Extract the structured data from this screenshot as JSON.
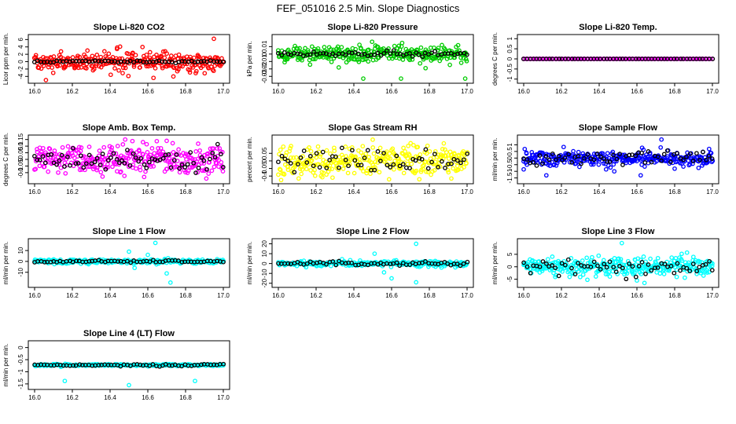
{
  "title": "FEF_051016  2.5 Min. Slope Diagnostics",
  "chart_data": [
    {
      "type": "scatter",
      "title": "Slope Li-820 CO2",
      "ylabel": "Licor ppm per min.",
      "xlim": [
        16.0,
        17.0
      ],
      "ylim": [
        -5,
        6.5
      ],
      "xticks": [
        "16.0",
        "16.2",
        "16.4",
        "16.6",
        "16.8",
        "17.0"
      ],
      "yticks": [
        -4,
        -2,
        0,
        2,
        4,
        6
      ],
      "series": [
        {
          "color": "#ff0000",
          "spread": 1.3,
          "n": 300,
          "outliers": [
            [
              16.06,
              -5.0
            ],
            [
              16.28,
              3.0
            ],
            [
              16.52,
              2.4
            ],
            [
              16.63,
              -4.4
            ],
            [
              16.95,
              6.2
            ]
          ]
        },
        {
          "color": "#000000",
          "spread": 0.12,
          "n": 60,
          "outliers": []
        }
      ]
    },
    {
      "type": "scatter",
      "title": "Slope Li-820 Pressure",
      "ylabel": "kPa per min.",
      "xlim": [
        16.0,
        17.0
      ],
      "ylim": [
        -0.035,
        0.022
      ],
      "xticks": [
        "16.0",
        "16.2",
        "16.4",
        "16.6",
        "16.8",
        "17.0"
      ],
      "yticks": [
        -0.03,
        -0.02,
        -0.01,
        0.0,
        0.01
      ],
      "series": [
        {
          "color": "#00cc00",
          "spread": 0.006,
          "n": 300,
          "outliers": [
            [
              16.32,
              -0.018
            ],
            [
              16.45,
              -0.033
            ],
            [
              16.65,
              -0.033
            ],
            [
              16.78,
              -0.019
            ],
            [
              16.99,
              -0.033
            ]
          ]
        },
        {
          "color": "#000000",
          "spread": 0.0015,
          "n": 60,
          "outliers": []
        }
      ]
    },
    {
      "type": "scatter",
      "title": "Slope Li-820 Temp.",
      "ylabel": "degrees C per min.",
      "xlim": [
        16.0,
        17.0
      ],
      "ylim": [
        -1.05,
        1.05
      ],
      "xticks": [
        "16.0",
        "16.2",
        "16.4",
        "16.6",
        "16.8",
        "17.0"
      ],
      "yticks": [
        -1.0,
        -0.5,
        0.0,
        0.5,
        1.0
      ],
      "series": [
        {
          "color": "#ff00ff",
          "spread": 0.0,
          "n": 120,
          "outliers": []
        },
        {
          "color": "#000000",
          "spread": 0.0,
          "n": 60,
          "outliers": []
        }
      ]
    },
    {
      "type": "scatter",
      "title": "Slope Amb. Box Temp.",
      "ylabel": "degrees C per min.",
      "xlim": [
        16.0,
        17.0
      ],
      "ylim": [
        -0.16,
        0.16
      ],
      "xticks": [
        "16.0",
        "16.2",
        "16.4",
        "16.6",
        "16.8",
        "17.0"
      ],
      "yticks": [
        -0.1,
        -0.05,
        0.0,
        0.05,
        0.1,
        0.15
      ],
      "series": [
        {
          "color": "#ff00ff",
          "spread": 0.055,
          "n": 320,
          "outliers": [
            [
              16.36,
              -0.13
            ],
            [
              16.48,
              0.15
            ],
            [
              16.7,
              0.14
            ]
          ]
        },
        {
          "color": "#000000",
          "spread": 0.04,
          "n": 70,
          "outliers": []
        }
      ]
    },
    {
      "type": "scatter",
      "title": "Slope Gas Stream RH",
      "ylabel": "percent per min.",
      "xlim": [
        16.0,
        17.0
      ],
      "ylim": [
        -0.13,
        0.15
      ],
      "xticks": [
        "16.0",
        "16.2",
        "16.4",
        "16.6",
        "16.8",
        "17.0"
      ],
      "yticks": [
        -0.1,
        -0.05,
        0.0,
        0.05
      ],
      "series": [
        {
          "color": "#ffff00",
          "spread": 0.05,
          "n": 320,
          "outliers": [
            [
              16.5,
              0.14
            ]
          ]
        },
        {
          "color": "#000000",
          "spread": 0.045,
          "n": 60,
          "outliers": []
        }
      ]
    },
    {
      "type": "scatter",
      "title": "Slope Sample Flow",
      "ylabel": "ml/min per min.",
      "xlim": [
        16.0,
        17.0
      ],
      "ylim": [
        -1.7,
        1.5
      ],
      "xticks": [
        "16.0",
        "16.2",
        "16.4",
        "16.6",
        "16.8",
        "17.0"
      ],
      "yticks": [
        -1.5,
        -1.0,
        -0.5,
        0.0,
        0.5,
        1.0
      ],
      "series": [
        {
          "color": "#0000ff",
          "spread": 0.3,
          "n": 320,
          "outliers": [
            [
              16.0,
              -0.85
            ],
            [
              16.12,
              -1.3
            ],
            [
              16.48,
              -1.0
            ],
            [
              16.62,
              -1.3
            ],
            [
              16.73,
              1.4
            ],
            [
              16.8,
              -0.8
            ]
          ]
        },
        {
          "color": "#000000",
          "spread": 0.3,
          "n": 60,
          "outliers": []
        }
      ]
    },
    {
      "type": "scatter",
      "title": "Slope Line 1 Flow",
      "ylabel": "ml/min per min.",
      "xlim": [
        16.0,
        17.0
      ],
      "ylim": [
        -21,
        18
      ],
      "xticks": [
        "16.0",
        "16.2",
        "16.4",
        "16.6",
        "16.8",
        "17.0"
      ],
      "yticks": [
        -10,
        0,
        10
      ],
      "series": [
        {
          "color": "#00ffff",
          "spread": 1.0,
          "n": 260,
          "outliers": [
            [
              16.5,
              9.0
            ],
            [
              16.53,
              -6.0
            ],
            [
              16.6,
              6.0
            ],
            [
              16.64,
              17.0
            ],
            [
              16.7,
              -11.0
            ],
            [
              16.72,
              -19.5
            ]
          ]
        },
        {
          "color": "#000000",
          "spread": 0.5,
          "n": 60,
          "outliers": []
        }
      ]
    },
    {
      "type": "scatter",
      "title": "Slope Line 2 Flow",
      "ylabel": "ml/min per min.",
      "xlim": [
        16.0,
        17.0
      ],
      "ylim": [
        -21,
        22
      ],
      "xticks": [
        "16.0",
        "16.2",
        "16.4",
        "16.6",
        "16.8",
        "17.0"
      ],
      "yticks": [
        -20,
        -10,
        0,
        10,
        20
      ],
      "series": [
        {
          "color": "#00ffff",
          "spread": 1.5,
          "n": 260,
          "outliers": [
            [
              16.51,
              10.0
            ],
            [
              16.56,
              -9.0
            ],
            [
              16.6,
              -15.0
            ],
            [
              16.73,
              20.0
            ],
            [
              16.73,
              -19.0
            ]
          ]
        },
        {
          "color": "#000000",
          "spread": 1.2,
          "n": 60,
          "outliers": []
        }
      ]
    },
    {
      "type": "scatter",
      "title": "Slope Line 3 Flow",
      "ylabel": "ml/min per min.",
      "xlim": [
        16.0,
        17.0
      ],
      "ylim": [
        -7,
        10
      ],
      "xticks": [
        "16.0",
        "16.2",
        "16.4",
        "16.6",
        "16.8",
        "17.0"
      ],
      "yticks": [
        -5,
        0,
        5
      ],
      "series": [
        {
          "color": "#00ffff",
          "spread": 1.8,
          "n": 320,
          "outliers": [
            [
              16.52,
              9.5
            ],
            [
              16.6,
              -5.5
            ],
            [
              16.64,
              -6.5
            ]
          ]
        },
        {
          "color": "#000000",
          "spread": 1.6,
          "n": 60,
          "outliers": []
        }
      ]
    },
    {
      "type": "scatter",
      "title": "Slope Line 4 (LT) Flow",
      "ylabel": "ml/min per min.",
      "xlim": [
        16.0,
        17.0
      ],
      "ylim": [
        -1.6,
        0.15
      ],
      "xticks": [
        "16.0",
        "16.2",
        "16.4",
        "16.6",
        "16.8",
        "17.0"
      ],
      "yticks": [
        -1.5,
        -1.0,
        -0.5,
        0.0
      ],
      "series": [
        {
          "color": "#00ffff",
          "spread": 0.02,
          "n": 260,
          "outliers": [
            [
              16.16,
              -1.38
            ],
            [
              16.5,
              -1.55
            ],
            [
              16.85,
              -1.38
            ]
          ]
        },
        {
          "color": "#000000",
          "spread": 0.02,
          "n": 60,
          "outliers": []
        }
      ]
    }
  ]
}
